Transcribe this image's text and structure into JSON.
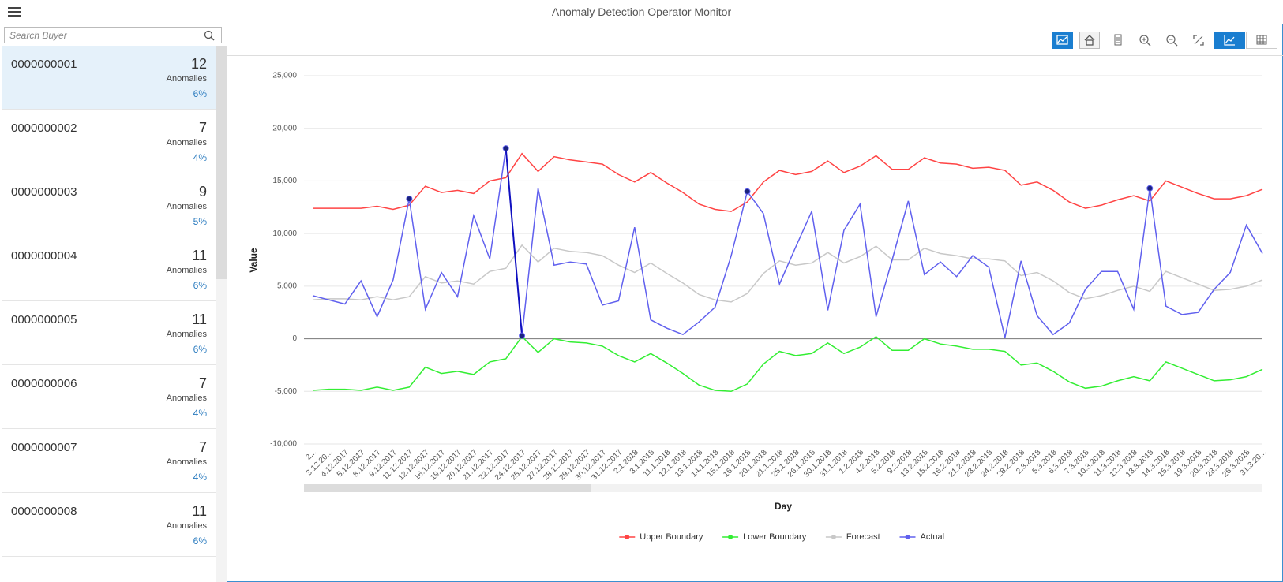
{
  "header": {
    "title": "Anomaly Detection Operator Monitor"
  },
  "search": {
    "placeholder": "Search Buyer"
  },
  "buyers": [
    {
      "id": "0000000001",
      "count": 12,
      "label": "Anomalies",
      "share": "6%"
    },
    {
      "id": "0000000002",
      "count": 7,
      "label": "Anomalies",
      "share": "4%"
    },
    {
      "id": "0000000003",
      "count": 9,
      "label": "Anomalies",
      "share": "5%"
    },
    {
      "id": "0000000004",
      "count": 11,
      "label": "Anomalies",
      "share": "6%"
    },
    {
      "id": "0000000005",
      "count": 11,
      "label": "Anomalies",
      "share": "6%"
    },
    {
      "id": "0000000006",
      "count": 7,
      "label": "Anomalies",
      "share": "4%"
    },
    {
      "id": "0000000007",
      "count": 7,
      "label": "Anomalies",
      "share": "4%"
    },
    {
      "id": "0000000008",
      "count": 11,
      "label": "Anomalies",
      "share": "6%"
    }
  ],
  "chart_data": {
    "type": "line",
    "x_label": "Day",
    "y_label": "Value",
    "categories": [
      "2...",
      "3.12.20...",
      "4.12.2017",
      "5.12.2017",
      "8.12.2017",
      "9.12.2017",
      "11.12.2017",
      "12.12.2017",
      "16.12.2017",
      "19.12.2017",
      "20.12.2017",
      "21.12.2017",
      "22.12.2017",
      "24.12.2017",
      "25.12.2017",
      "27.12.2017",
      "28.12.2017",
      "29.12.2017",
      "30.12.2017",
      "31.12.2017",
      "2.1.2018",
      "3.1.2018",
      "11.1.2018",
      "12.1.2018",
      "13.1.2018",
      "14.1.2018",
      "15.1.2018",
      "16.1.2018",
      "20.1.2018",
      "21.1.2018",
      "25.1.2018",
      "26.1.2018",
      "30.1.2018",
      "31.1.2018",
      "1.2.2018",
      "4.2.2018",
      "5.2.2018",
      "9.2.2018",
      "13.2.2018",
      "15.2.2018",
      "16.2.2018",
      "21.2.2018",
      "23.2.2018",
      "24.2.2018",
      "28.2.2018",
      "2.3.2018",
      "5.3.2018",
      "6.3.2018",
      "7.3.2018",
      "10.3.2018",
      "11.3.2018",
      "12.3.2018",
      "13.3.2018",
      "14.3.2018",
      "15.3.2018",
      "19.3.2018",
      "20.3.2018",
      "23.3.2018",
      "26.3.2018",
      "31.3.20..."
    ],
    "series": [
      {
        "name": "Upper Boundary",
        "color": "#ff4444",
        "values": [
          12400,
          12400,
          12400,
          12400,
          12600,
          12300,
          12700,
          14500,
          13900,
          14100,
          13800,
          15000,
          15300,
          17600,
          15900,
          17300,
          17000,
          16800,
          16600,
          15600,
          14900,
          15800,
          14800,
          13900,
          12800,
          12300,
          12100,
          13000,
          14900,
          16000,
          15600,
          15900,
          16900,
          15800,
          16400,
          17400,
          16100,
          16100,
          17200,
          16700,
          16600,
          16200,
          16300,
          16000,
          14600,
          14900,
          14100,
          13000,
          12400,
          12700,
          13200,
          13600,
          13100,
          15000,
          14400,
          13800,
          13300,
          13300,
          13600,
          14200
        ]
      },
      {
        "name": "Lower Boundary",
        "color": "#33ee33",
        "values": [
          -4900,
          -4800,
          -4800,
          -4900,
          -4600,
          -4900,
          -4600,
          -2700,
          -3300,
          -3100,
          -3400,
          -2200,
          -1900,
          200,
          -1300,
          0,
          -300,
          -400,
          -700,
          -1600,
          -2200,
          -1400,
          -2300,
          -3300,
          -4400,
          -4900,
          -5000,
          -4300,
          -2400,
          -1200,
          -1600,
          -1400,
          -400,
          -1400,
          -800,
          200,
          -1100,
          -1100,
          0,
          -500,
          -700,
          -1000,
          -1000,
          -1200,
          -2500,
          -2300,
          -3100,
          -4100,
          -4700,
          -4500,
          -4000,
          -3600,
          -4000,
          -2200,
          -2800,
          -3400,
          -4000,
          -3900,
          -3600,
          -2900
        ]
      },
      {
        "name": "Forecast",
        "color": "#c8c8c8",
        "values": [
          3700,
          3800,
          3800,
          3700,
          4000,
          3700,
          4000,
          5900,
          5300,
          5500,
          5200,
          6400,
          6700,
          8900,
          7300,
          8600,
          8300,
          8200,
          7900,
          7000,
          6300,
          7200,
          6200,
          5300,
          4200,
          3700,
          3500,
          4300,
          6200,
          7400,
          7000,
          7200,
          8200,
          7200,
          7800,
          8800,
          7500,
          7500,
          8600,
          8100,
          7900,
          7600,
          7600,
          7400,
          6000,
          6300,
          5500,
          4400,
          3800,
          4100,
          4600,
          5000,
          4500,
          6400,
          5800,
          5200,
          4600,
          4700,
          5000,
          5600
        ]
      },
      {
        "name": "Actual",
        "color": "#6060ee",
        "values": [
          4100,
          3700,
          3300,
          5500,
          2100,
          5600,
          13300,
          2800,
          6300,
          4000,
          11700,
          7600,
          18100,
          300,
          14300,
          7000,
          7300,
          7100,
          3200,
          3600,
          10600,
          1800,
          1000,
          400,
          1600,
          3000,
          7900,
          14000,
          11900,
          5200,
          8700,
          12100,
          2700,
          10300,
          12800,
          2100,
          7500,
          13100,
          6100,
          7300,
          5900,
          7900,
          6800,
          100,
          7400,
          2200,
          400,
          1500,
          4700,
          6400,
          6400,
          2800,
          14300,
          3100,
          2300,
          2500,
          4700,
          6300,
          10800,
          8100
        ],
        "anomaly_points": [
          6,
          12,
          13,
          27,
          52
        ]
      }
    ],
    "ylim": [
      -10000,
      25000
    ],
    "yticks": [
      {
        "value": -10000,
        "label": "-10,000"
      },
      {
        "value": -5000,
        "label": "-5,000"
      },
      0,
      {
        "value": 5000,
        "label": "5,000"
      },
      {
        "value": 10000,
        "label": "10,000"
      },
      {
        "value": 15000,
        "label": "15,000"
      },
      {
        "value": 20000,
        "label": "20,000"
      },
      {
        "value": 25000,
        "label": "25,000"
      }
    ],
    "grid": true,
    "legend": "bottom"
  }
}
